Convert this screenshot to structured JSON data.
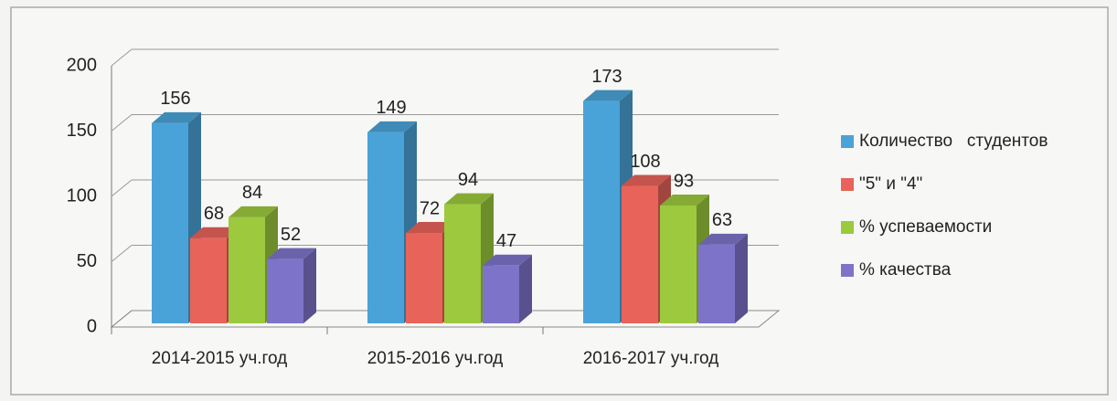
{
  "chart_data": {
    "type": "bar3d",
    "categories": [
      "2014-2015 уч.год",
      "2015-2016 уч.год",
      "2016-2017 уч.год"
    ],
    "series": [
      {
        "name": "Количество   студентов",
        "color": "#4aa3d8",
        "values": [
          156,
          149,
          173
        ]
      },
      {
        "name": "\"5\" и \"4\"",
        "color": "#e8635a",
        "values": [
          68,
          72,
          108
        ]
      },
      {
        "name": "% успеваемости",
        "color": "#9cc93e",
        "values": [
          84,
          94,
          93
        ]
      },
      {
        "name": "% качества",
        "color": "#7d74c9",
        "values": [
          52,
          47,
          63
        ]
      }
    ],
    "ylim": [
      0,
      200
    ],
    "yticks": [
      0,
      50,
      100,
      150,
      200
    ],
    "grid": true,
    "legend": "right"
  }
}
